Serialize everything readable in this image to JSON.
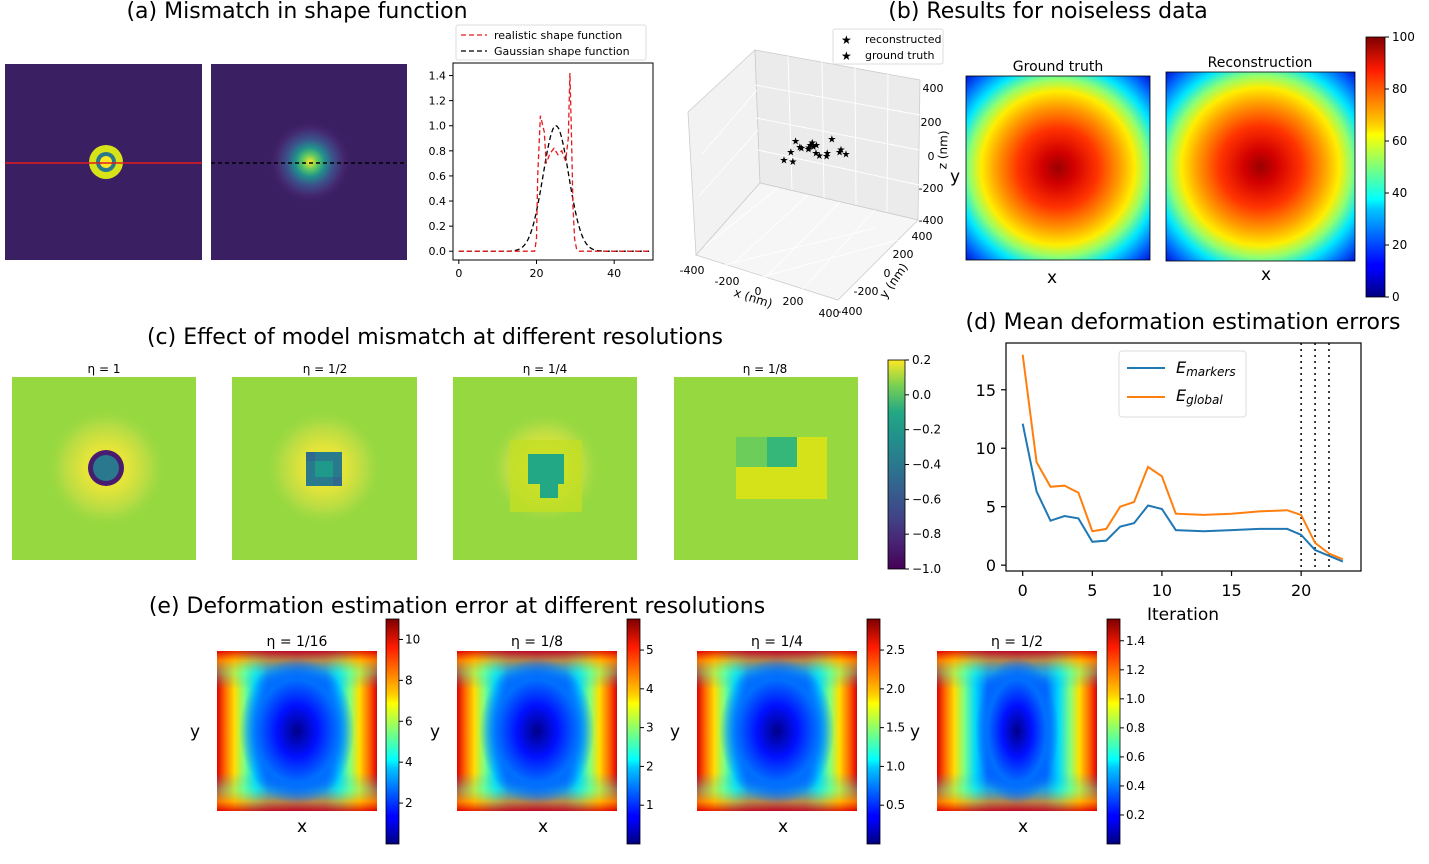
{
  "panels": {
    "a": {
      "title": "(a) Mismatch in shape function",
      "legend": [
        "realistic shape function",
        "Gaussian shape function"
      ],
      "colors": {
        "background": "#3b1f63",
        "realistic": "#e41a1c",
        "gaussian": "#000000"
      }
    },
    "b": {
      "title": "(b) Results for noiseless data",
      "legend": [
        "reconstructed",
        "ground truth"
      ],
      "xlabel": "x (nm)",
      "ylabel": "y (nm)",
      "zlabel": "z (nm)",
      "x_ticks": [
        "-400",
        "-200",
        "0",
        "200",
        "400"
      ],
      "y_ticks": [
        "400",
        "200",
        "0",
        "-200",
        "-400"
      ],
      "z_ticks": [
        "400",
        "200",
        "0",
        "-200",
        "-400"
      ],
      "map_titles": [
        "Ground truth",
        "Reconstruction"
      ],
      "map_xlabel": "x",
      "map_ylabel": "y",
      "colorbar_ticks": [
        "100",
        "80",
        "60",
        "40",
        "20",
        "0"
      ]
    },
    "c": {
      "title": "(c) Effect of model mismatch at different resolutions",
      "subtitles": [
        "η = 1",
        "η = 1/2",
        "η = 1/4",
        "η = 1/8"
      ],
      "colorbar_ticks": [
        "0.2",
        "0.0",
        "−0.2",
        "−0.4",
        "−0.6",
        "−0.8",
        "−1.0"
      ]
    },
    "d": {
      "title": "(d) Mean deformation estimation errors",
      "xlabel": "Iteration",
      "legend": [
        "E_markers",
        "E_global"
      ]
    },
    "e": {
      "title": "(e) Deformation estimation error at different resolutions",
      "subtitles": [
        "η = 1/16",
        "η = 1/8",
        "η = 1/4",
        "η = 1/2"
      ],
      "xlabel": "x",
      "ylabel": "y",
      "colorbars": [
        [
          "10",
          "8",
          "6",
          "4",
          "2"
        ],
        [
          "5",
          "4",
          "3",
          "2",
          "1"
        ],
        [
          "2.5",
          "2.0",
          "1.5",
          "1.0",
          "0.5"
        ],
        [
          "1.4",
          "1.2",
          "1.0",
          "0.8",
          "0.6",
          "0.4",
          "0.2"
        ]
      ]
    }
  },
  "chart_data": [
    {
      "type": "line",
      "panel": "a",
      "x_ticks": [
        "0",
        "20",
        "40"
      ],
      "y_ticks": [
        "0.0",
        "0.2",
        "0.4",
        "0.6",
        "0.8",
        "1.0",
        "1.2",
        "1.4"
      ],
      "xlim": [
        -1.5,
        50
      ],
      "ylim": [
        -0.07,
        1.5
      ],
      "series": [
        {
          "name": "realistic shape function",
          "style": "dashed",
          "color": "#e41a1c",
          "x": [
            0,
            19.5,
            20,
            20.3,
            21,
            22,
            22.5,
            23.5,
            24.5,
            25.5,
            26.5,
            27.5,
            28.2,
            28.6,
            29,
            29.4,
            29.8,
            30.3,
            31,
            32,
            49
          ],
          "y": [
            0,
            0,
            0.1,
            0.6,
            1.08,
            0.95,
            0.7,
            0.78,
            0.82,
            0.77,
            0.8,
            0.72,
            0.9,
            1.42,
            0.95,
            0.35,
            0.1,
            0.02,
            0,
            0,
            0
          ]
        },
        {
          "name": "Gaussian shape function",
          "style": "dashed",
          "color": "#000000",
          "gaussian": {
            "amplitude": 1.0,
            "center": 25,
            "sigma": 3.3
          },
          "x_range": [
            0,
            49
          ]
        }
      ]
    },
    {
      "type": "scatter",
      "panel": "b",
      "projection": "3d",
      "xlim": [
        -400,
        400
      ],
      "ylim": [
        -400,
        400
      ],
      "zlim": [
        -400,
        400
      ],
      "series": [
        {
          "name": "reconstructed",
          "color": "#e41a1c",
          "points": [
            [
              -300,
              100,
              80
            ],
            [
              -120,
              60,
              120
            ],
            [
              -60,
              80,
              110
            ],
            [
              -20,
              40,
              100
            ],
            [
              40,
              80,
              60
            ],
            [
              100,
              -20,
              30
            ],
            [
              160,
              20,
              20
            ],
            [
              220,
              -40,
              10
            ],
            [
              260,
              40,
              40
            ],
            [
              300,
              60,
              30
            ],
            [
              -20,
              -120,
              -40
            ],
            [
              80,
              160,
              180
            ],
            [
              140,
              -60,
              60
            ],
            [
              -160,
              120,
              140
            ]
          ]
        },
        {
          "name": "ground truth",
          "color": "#2e7d32",
          "points": [
            [
              -140,
              40,
              150
            ],
            [
              -60,
              100,
              140
            ],
            [
              200,
              120,
              90
            ],
            [
              40,
              20,
              90
            ],
            [
              120,
              -80,
              70
            ],
            [
              -220,
              80,
              110
            ]
          ]
        }
      ]
    },
    {
      "type": "heatmap",
      "panel": "b",
      "maps": [
        "Ground truth",
        "Reconstruction"
      ],
      "colormap": "jet",
      "value_range": [
        0,
        100
      ],
      "center_value": 100,
      "corner_value": 20,
      "note": "radial displacement magnitude"
    },
    {
      "type": "heatmap",
      "panel": "c",
      "colormap": "viridis",
      "value_range": [
        -1.0,
        0.2
      ],
      "background_value": 0.0,
      "ring_value": 0.2,
      "core_value": -0.9
    },
    {
      "type": "line",
      "panel": "d",
      "x_ticks": [
        "0",
        "5",
        "10",
        "15",
        "20"
      ],
      "y_ticks": [
        "0",
        "5",
        "10",
        "15"
      ],
      "xlim": [
        -1.2,
        24.3
      ],
      "ylim": [
        -0.5,
        19
      ],
      "vlines": [
        20,
        21,
        22
      ],
      "series": [
        {
          "name": "E_markers",
          "color": "#1f77b4",
          "x": [
            0,
            1,
            2,
            3,
            4,
            5,
            6,
            7,
            8,
            9,
            10,
            11,
            13,
            15,
            17,
            19,
            20,
            21,
            22,
            23
          ],
          "y": [
            12.1,
            6.3,
            3.8,
            4.2,
            4.0,
            2.0,
            2.1,
            3.3,
            3.6,
            5.1,
            4.8,
            3.0,
            2.9,
            3.0,
            3.1,
            3.1,
            2.6,
            1.3,
            0.8,
            0.3
          ]
        },
        {
          "name": "E_global",
          "color": "#ff7f0e",
          "x": [
            0,
            1,
            2,
            3,
            4,
            5,
            6,
            7,
            8,
            9,
            10,
            11,
            13,
            15,
            17,
            19,
            20,
            21,
            22,
            23
          ],
          "y": [
            18.0,
            8.8,
            6.7,
            6.8,
            6.2,
            2.9,
            3.1,
            5.0,
            5.4,
            8.4,
            7.6,
            4.4,
            4.3,
            4.4,
            4.6,
            4.7,
            4.3,
            1.9,
            1.0,
            0.5
          ]
        }
      ]
    },
    {
      "type": "heatmap",
      "panel": "e",
      "colormap": "jet",
      "maps": [
        {
          "label": "η = 1/16",
          "value_range": [
            0,
            11
          ],
          "min_value": 0.3,
          "max_value": 11
        },
        {
          "label": "η = 1/8",
          "value_range": [
            0,
            5.8
          ],
          "min_value": 0.2,
          "max_value": 5.8
        },
        {
          "label": "η = 1/4",
          "value_range": [
            0,
            2.9
          ],
          "min_value": 0.1,
          "max_value": 2.9
        },
        {
          "label": "η = 1/2",
          "value_range": [
            0,
            1.55
          ],
          "min_value": 0.05,
          "max_value": 1.55
        }
      ]
    }
  ]
}
